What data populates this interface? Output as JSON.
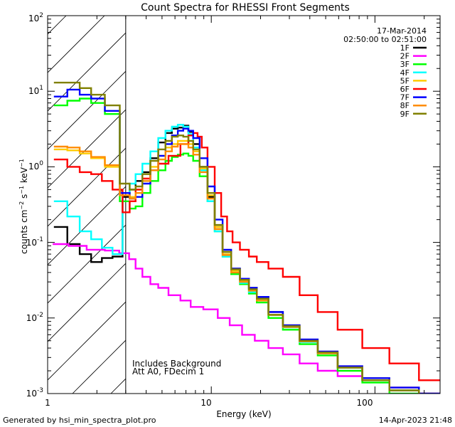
{
  "chart_data": {
    "type": "line",
    "title": "Count Spectra for RHESSI Front Segments",
    "xlabel": "Energy (keV)",
    "ylabel": "counts cm^-2 s^-1 keV^-1",
    "ylabel_parts": {
      "base": "counts cm",
      "exp1": "−2",
      "mid": " s",
      "exp2": "−1",
      "end": " keV",
      "exp3": "−1"
    },
    "xscale": "log",
    "yscale": "log",
    "xlim": [
      1,
      250
    ],
    "ylim": [
      0.001,
      100
    ],
    "x_tick_labels": [
      "1",
      "10",
      "100"
    ],
    "y_tick_labels": [
      {
        "base": "10",
        "exp": "-3"
      },
      {
        "base": "10",
        "exp": "-2"
      },
      {
        "base": "10",
        "exp": "-1"
      },
      {
        "base": "10",
        "exp": "0"
      },
      {
        "base": "10",
        "exp": "1"
      },
      {
        "base": "10",
        "exp": "2"
      }
    ],
    "hatched_region": {
      "x_min": 1,
      "x_max": 3
    },
    "date": "17-Mar-2014",
    "time_range": "02:50:00 to 02:51:00",
    "annotations": [
      "Includes Background",
      "Att A0, FDecim 1"
    ],
    "series": [
      {
        "name": "1F",
        "color": "#000000",
        "x": [
          1.2,
          1.45,
          1.7,
          2.0,
          2.3,
          2.7,
          3.05,
          3.3,
          3.6,
          4.0,
          4.5,
          5.0,
          5.5,
          6.0,
          6.5,
          7.0,
          7.5,
          8.0,
          9.0,
          10.0,
          11.0,
          12.5,
          14.0,
          16.0,
          18.0,
          20.0,
          25.0,
          30.0,
          40.0,
          50.0,
          70.0,
          100.0,
          150.0,
          230.0
        ],
        "y": [
          0.16,
          0.095,
          0.07,
          0.055,
          0.062,
          0.065,
          0.4,
          0.5,
          0.65,
          0.85,
          1.3,
          2.1,
          2.8,
          3.2,
          3.3,
          3.5,
          2.9,
          2.0,
          1.0,
          0.4,
          0.16,
          0.075,
          0.045,
          0.033,
          0.025,
          0.019,
          0.012,
          0.008,
          0.005,
          0.0035,
          0.0022,
          0.0015,
          0.0011,
          0.0009
        ]
      },
      {
        "name": "2F",
        "color": "#ff00ff",
        "x": [
          1.2,
          1.5,
          2.0,
          2.5,
          3.0,
          3.3,
          3.6,
          4.0,
          4.5,
          5.0,
          6.0,
          7.0,
          8.0,
          10.0,
          12.0,
          14.0,
          17.0,
          20.0,
          25.0,
          30.0,
          40.0,
          50.0,
          70.0,
          100.0,
          150.0,
          230.0
        ],
        "y": [
          0.095,
          0.09,
          0.08,
          0.078,
          0.072,
          0.06,
          0.045,
          0.035,
          0.028,
          0.025,
          0.02,
          0.017,
          0.014,
          0.013,
          0.01,
          0.008,
          0.006,
          0.005,
          0.004,
          0.0033,
          0.0025,
          0.002,
          0.0017,
          0.0015,
          0.0012,
          0.001
        ]
      },
      {
        "name": "3F",
        "color": "#00ff00",
        "x": [
          1.2,
          1.45,
          1.7,
          2.0,
          2.5,
          3.05,
          3.3,
          3.6,
          4.0,
          4.5,
          5.0,
          5.5,
          6.0,
          6.5,
          7.0,
          7.5,
          8.0,
          9.0,
          10.0,
          11.0,
          12.5,
          14.0,
          16.0,
          18.0,
          20.0,
          25.0,
          30.0,
          40.0,
          50.0,
          70.0,
          100.0,
          150.0,
          230.0
        ],
        "y": [
          6.5,
          7.5,
          8.0,
          7.0,
          5.0,
          0.35,
          0.28,
          0.3,
          0.45,
          0.65,
          0.9,
          1.2,
          1.35,
          1.45,
          1.5,
          1.4,
          1.2,
          0.75,
          0.35,
          0.14,
          0.065,
          0.038,
          0.028,
          0.021,
          0.016,
          0.01,
          0.007,
          0.0045,
          0.0032,
          0.002,
          0.0014,
          0.001,
          0.0008
        ]
      },
      {
        "name": "4F",
        "color": "#00ffff",
        "x": [
          1.2,
          1.45,
          1.7,
          2.0,
          2.3,
          2.7,
          3.05,
          3.3,
          3.6,
          4.0,
          4.5,
          5.0,
          5.5,
          6.0,
          6.5,
          7.0,
          7.5,
          8.0,
          9.0,
          10.0,
          11.0,
          12.5,
          14.0,
          16.0,
          18.0,
          20.0,
          25.0,
          30.0,
          40.0,
          50.0,
          70.0,
          100.0,
          150.0,
          230.0
        ],
        "y": [
          0.35,
          0.22,
          0.14,
          0.11,
          0.085,
          0.07,
          0.45,
          0.6,
          0.8,
          1.1,
          1.6,
          2.4,
          3.0,
          3.4,
          3.6,
          3.4,
          2.7,
          1.8,
          0.9,
          0.35,
          0.14,
          0.065,
          0.04,
          0.029,
          0.022,
          0.017,
          0.011,
          0.0075,
          0.0048,
          0.0034,
          0.0022,
          0.0015,
          0.0011,
          0.0009
        ]
      },
      {
        "name": "5F",
        "color": "#ffcc00",
        "x": [
          1.2,
          1.45,
          1.7,
          2.0,
          2.5,
          3.05,
          3.3,
          3.6,
          4.0,
          4.5,
          5.0,
          5.5,
          6.0,
          6.5,
          7.0,
          7.5,
          8.0,
          9.0,
          10.0,
          11.0,
          12.5,
          14.0,
          16.0,
          18.0,
          20.0,
          25.0,
          30.0,
          40.0,
          50.0,
          70.0,
          100.0,
          150.0,
          230.0
        ],
        "y": [
          1.7,
          1.65,
          1.5,
          1.3,
          1.0,
          0.45,
          0.4,
          0.5,
          0.7,
          1.0,
          1.4,
          1.8,
          2.0,
          2.2,
          2.2,
          2.0,
          1.6,
          0.95,
          0.42,
          0.16,
          0.07,
          0.042,
          0.031,
          0.024,
          0.018,
          0.011,
          0.008,
          0.005,
          0.0036,
          0.0023,
          0.0016,
          0.0012,
          0.001
        ]
      },
      {
        "name": "6F",
        "color": "#ff0000",
        "x": [
          1.2,
          1.45,
          1.7,
          2.0,
          2.3,
          2.7,
          3.05,
          3.3,
          3.6,
          4.0,
          4.5,
          5.0,
          6.0,
          7.0,
          7.5,
          8.0,
          8.5,
          9.0,
          10.0,
          11.0,
          12.0,
          13.0,
          14.0,
          16.0,
          18.0,
          20.0,
          25.0,
          30.0,
          40.0,
          50.0,
          70.0,
          100.0,
          150.0,
          230.0
        ],
        "y": [
          1.25,
          1.0,
          0.85,
          0.8,
          0.65,
          0.5,
          0.25,
          0.35,
          0.5,
          0.7,
          0.9,
          1.1,
          1.4,
          2.0,
          2.6,
          2.8,
          2.5,
          1.8,
          1.0,
          0.45,
          0.22,
          0.14,
          0.1,
          0.08,
          0.065,
          0.055,
          0.045,
          0.035,
          0.02,
          0.012,
          0.007,
          0.004,
          0.0025,
          0.0015
        ]
      },
      {
        "name": "7F",
        "color": "#0000ff",
        "x": [
          1.2,
          1.45,
          1.7,
          2.0,
          2.5,
          3.05,
          3.3,
          3.6,
          4.0,
          4.5,
          5.0,
          5.5,
          6.0,
          6.5,
          7.0,
          7.5,
          8.0,
          9.0,
          10.0,
          11.0,
          12.5,
          14.0,
          16.0,
          18.0,
          20.0,
          25.0,
          30.0,
          40.0,
          50.0,
          70.0,
          100.0,
          150.0,
          230.0
        ],
        "y": [
          8.5,
          10.5,
          9.0,
          8.0,
          5.5,
          0.45,
          0.38,
          0.4,
          0.6,
          0.9,
          1.4,
          2.0,
          2.6,
          3.0,
          3.2,
          3.0,
          2.4,
          1.3,
          0.55,
          0.2,
          0.08,
          0.045,
          0.033,
          0.025,
          0.019,
          0.012,
          0.008,
          0.0052,
          0.0036,
          0.0023,
          0.0016,
          0.0012,
          0.001
        ]
      },
      {
        "name": "8F",
        "color": "#ff8c00",
        "x": [
          1.2,
          1.45,
          1.7,
          2.0,
          2.5,
          3.05,
          3.3,
          3.6,
          4.0,
          4.5,
          5.0,
          5.5,
          6.0,
          6.5,
          7.0,
          7.5,
          8.0,
          9.0,
          10.0,
          11.0,
          12.5,
          14.0,
          16.0,
          18.0,
          20.0,
          25.0,
          30.0,
          40.0,
          50.0,
          70.0,
          100.0,
          150.0,
          230.0
        ],
        "y": [
          1.85,
          1.8,
          1.6,
          1.35,
          1.05,
          0.42,
          0.38,
          0.45,
          0.65,
          0.9,
          1.25,
          1.6,
          1.85,
          2.0,
          2.0,
          1.8,
          1.45,
          0.85,
          0.38,
          0.15,
          0.068,
          0.04,
          0.03,
          0.023,
          0.017,
          0.011,
          0.0076,
          0.0049,
          0.0034,
          0.0022,
          0.0015,
          0.0011,
          0.0009
        ]
      },
      {
        "name": "9F",
        "color": "#808000",
        "x": [
          1.2,
          1.45,
          1.7,
          2.0,
          2.5,
          3.05,
          3.3,
          3.6,
          4.0,
          4.5,
          5.0,
          5.5,
          6.0,
          6.5,
          7.0,
          7.5,
          8.0,
          9.0,
          10.0,
          11.0,
          12.5,
          14.0,
          16.0,
          18.0,
          20.0,
          25.0,
          30.0,
          40.0,
          50.0,
          70.0,
          100.0,
          150.0,
          230.0
        ],
        "y": [
          13.0,
          13.0,
          11.0,
          9.0,
          6.5,
          0.6,
          0.5,
          0.55,
          0.8,
          1.2,
          1.7,
          2.2,
          2.5,
          2.6,
          2.5,
          2.2,
          1.7,
          1.0,
          0.45,
          0.17,
          0.075,
          0.044,
          0.032,
          0.024,
          0.018,
          0.011,
          0.0078,
          0.005,
          0.0035,
          0.0022,
          0.0015,
          0.0011,
          0.0009
        ]
      }
    ]
  },
  "footer": {
    "generated_by": "Generated by hsi_min_spectra_plot.pro",
    "timestamp": "14-Apr-2023 21:48"
  }
}
